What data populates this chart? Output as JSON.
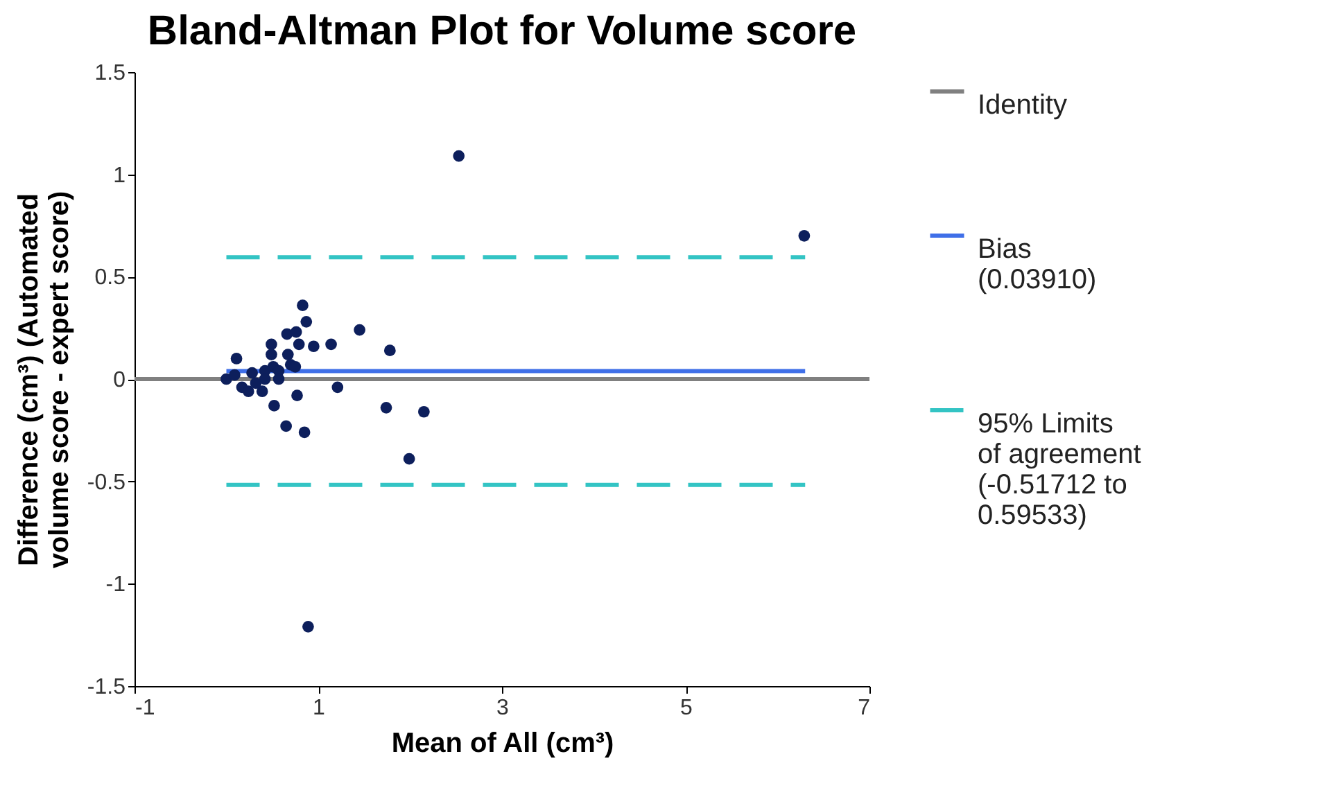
{
  "chart_data": {
    "type": "scatter",
    "title": "Bland-Altman Plot for Volume score",
    "xlabel": "Mean of All (cm³)",
    "ylabel": "Difference (cm³) (Automated volume score - expert score)",
    "xlim": [
      -1,
      7
    ],
    "xticks": [
      -1,
      1,
      3,
      5,
      7
    ],
    "ylim": [
      -1.5,
      1.5
    ],
    "yticks": [
      -1.5,
      -1,
      -0.5,
      0,
      0.5,
      1,
      1.5
    ],
    "grid": false,
    "legend": "right",
    "series": [
      {
        "type": "scatter",
        "color": "#0d1f5c",
        "marker": "circle",
        "x": [
          2.53,
          6.29,
          0.89,
          1.99,
          0.83,
          0.87,
          0.66,
          0.76,
          1.45,
          0.49,
          0.79,
          0.95,
          1.14,
          1.78,
          0.11,
          0.49,
          0.67,
          0.7,
          0.51,
          0.28,
          0.75,
          0.57,
          0.0,
          0.09,
          0.17,
          0.24,
          0.42,
          0.42,
          0.57,
          0.39,
          0.77,
          1.21,
          0.52,
          0.65,
          0.85,
          1.74,
          2.15,
          0.32
        ],
        "values": [
          1.09,
          0.7,
          -1.21,
          -0.39,
          0.36,
          0.28,
          0.22,
          0.23,
          0.24,
          0.17,
          0.17,
          0.16,
          0.17,
          0.14,
          0.1,
          0.12,
          0.12,
          0.07,
          0.06,
          0.03,
          0.06,
          0.04,
          0.0,
          0.02,
          -0.04,
          -0.06,
          0.04,
          0.0,
          0.0,
          -0.06,
          -0.08,
          -0.04,
          -0.13,
          -0.23,
          -0.26,
          -0.14,
          -0.16,
          -0.02
        ]
      },
      {
        "type": "line",
        "name": "Identity",
        "color": "#808080",
        "line_style": "solid",
        "marker": "none",
        "x": [
          -1,
          7
        ],
        "values": [
          0,
          0
        ]
      },
      {
        "type": "line",
        "name": "Bias (0.03910)",
        "color": "#3f6fe8",
        "line_style": "solid",
        "marker": "none",
        "x": [
          0,
          6.3
        ],
        "values": [
          0.0391,
          0.0391
        ]
      },
      {
        "type": "line",
        "name": "95% Limits of agreement (-0.51712 to 0.59533)",
        "color": "#33c4c4",
        "line_style": "dashed",
        "marker": "none",
        "x": [
          0,
          6.3
        ],
        "values": [
          0.59533,
          0.59533
        ]
      },
      {
        "type": "line",
        "color": "#33c4c4",
        "line_style": "dashed",
        "marker": "none",
        "x": [
          0,
          6.3
        ],
        "values": [
          -0.51712,
          -0.51712
        ]
      }
    ]
  }
}
